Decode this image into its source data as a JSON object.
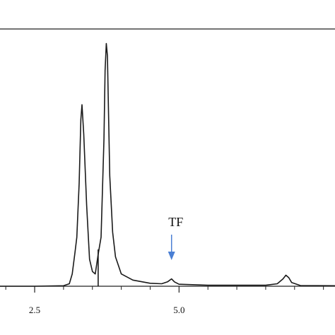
{
  "chart_data": {
    "type": "line",
    "title": "",
    "xlabel": "",
    "ylabel": "",
    "xlim": [
      1.9,
      7.7
    ],
    "ylim": [
      0,
      1.0
    ],
    "grid": false,
    "x_ticks": [
      2.5,
      5.0
    ],
    "x_tick_labels": [
      "2.5",
      "5.0"
    ],
    "x_minor_ticks": [
      2.0,
      3.0,
      3.5,
      4.0,
      4.5,
      5.5,
      6.0,
      6.5,
      7.0,
      7.5
    ],
    "line_color": "#1a1a1a",
    "series": [
      {
        "values": [
          [
            1.9,
            0.0
          ],
          [
            2.5,
            0.0
          ],
          [
            3.0,
            0.002
          ],
          [
            3.1,
            0.01
          ],
          [
            3.15,
            0.05
          ],
          [
            3.2,
            0.14
          ],
          [
            3.23,
            0.2
          ],
          [
            3.27,
            0.42
          ],
          [
            3.3,
            0.68
          ],
          [
            3.32,
            0.74
          ],
          [
            3.35,
            0.62
          ],
          [
            3.4,
            0.33
          ],
          [
            3.45,
            0.11
          ],
          [
            3.5,
            0.06
          ],
          [
            3.55,
            0.05
          ],
          [
            3.6,
            0.13
          ],
          [
            3.65,
            0.2
          ],
          [
            3.7,
            0.6
          ],
          [
            3.72,
            0.88
          ],
          [
            3.74,
            0.99
          ],
          [
            3.76,
            0.94
          ],
          [
            3.78,
            0.7
          ],
          [
            3.8,
            0.45
          ],
          [
            3.85,
            0.22
          ],
          [
            3.9,
            0.12
          ],
          [
            4.0,
            0.05
          ],
          [
            4.2,
            0.025
          ],
          [
            4.5,
            0.012
          ],
          [
            4.7,
            0.01
          ],
          [
            4.8,
            0.018
          ],
          [
            4.87,
            0.03
          ],
          [
            4.92,
            0.018
          ],
          [
            5.0,
            0.008
          ],
          [
            5.5,
            0.004
          ],
          [
            6.5,
            0.004
          ],
          [
            6.7,
            0.01
          ],
          [
            6.8,
            0.03
          ],
          [
            6.85,
            0.045
          ],
          [
            6.9,
            0.035
          ],
          [
            6.95,
            0.015
          ],
          [
            7.1,
            0.003
          ],
          [
            7.7,
            0.002
          ]
        ]
      },
      {
        "values": [
          [
            3.6,
            0.0
          ],
          [
            3.6,
            0.15
          ]
        ]
      }
    ],
    "annotations": [
      {
        "text": "TF",
        "x": 4.87,
        "arrow_color": "#4a7fd4"
      }
    ]
  }
}
